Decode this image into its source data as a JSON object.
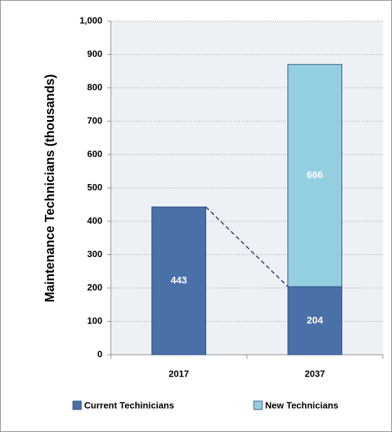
{
  "chart_data": {
    "type": "stacked-bar",
    "y_label": "Maintenance Technicians (thousands)",
    "categories": [
      "2017",
      "2037"
    ],
    "series": [
      {
        "name": "Current Techinicians",
        "color": "#4a70a8",
        "values": [
          443,
          204
        ]
      },
      {
        "name": "New Technicians",
        "color": "#93cfe0",
        "values": [
          null,
          666
        ]
      }
    ],
    "ylim": [
      0,
      1000
    ],
    "yticks": [
      0,
      100,
      200,
      300,
      400,
      500,
      600,
      700,
      800,
      900,
      {
        "value": 1000,
        "label": "1,000"
      }
    ],
    "grid": true,
    "legend": "bottom"
  }
}
